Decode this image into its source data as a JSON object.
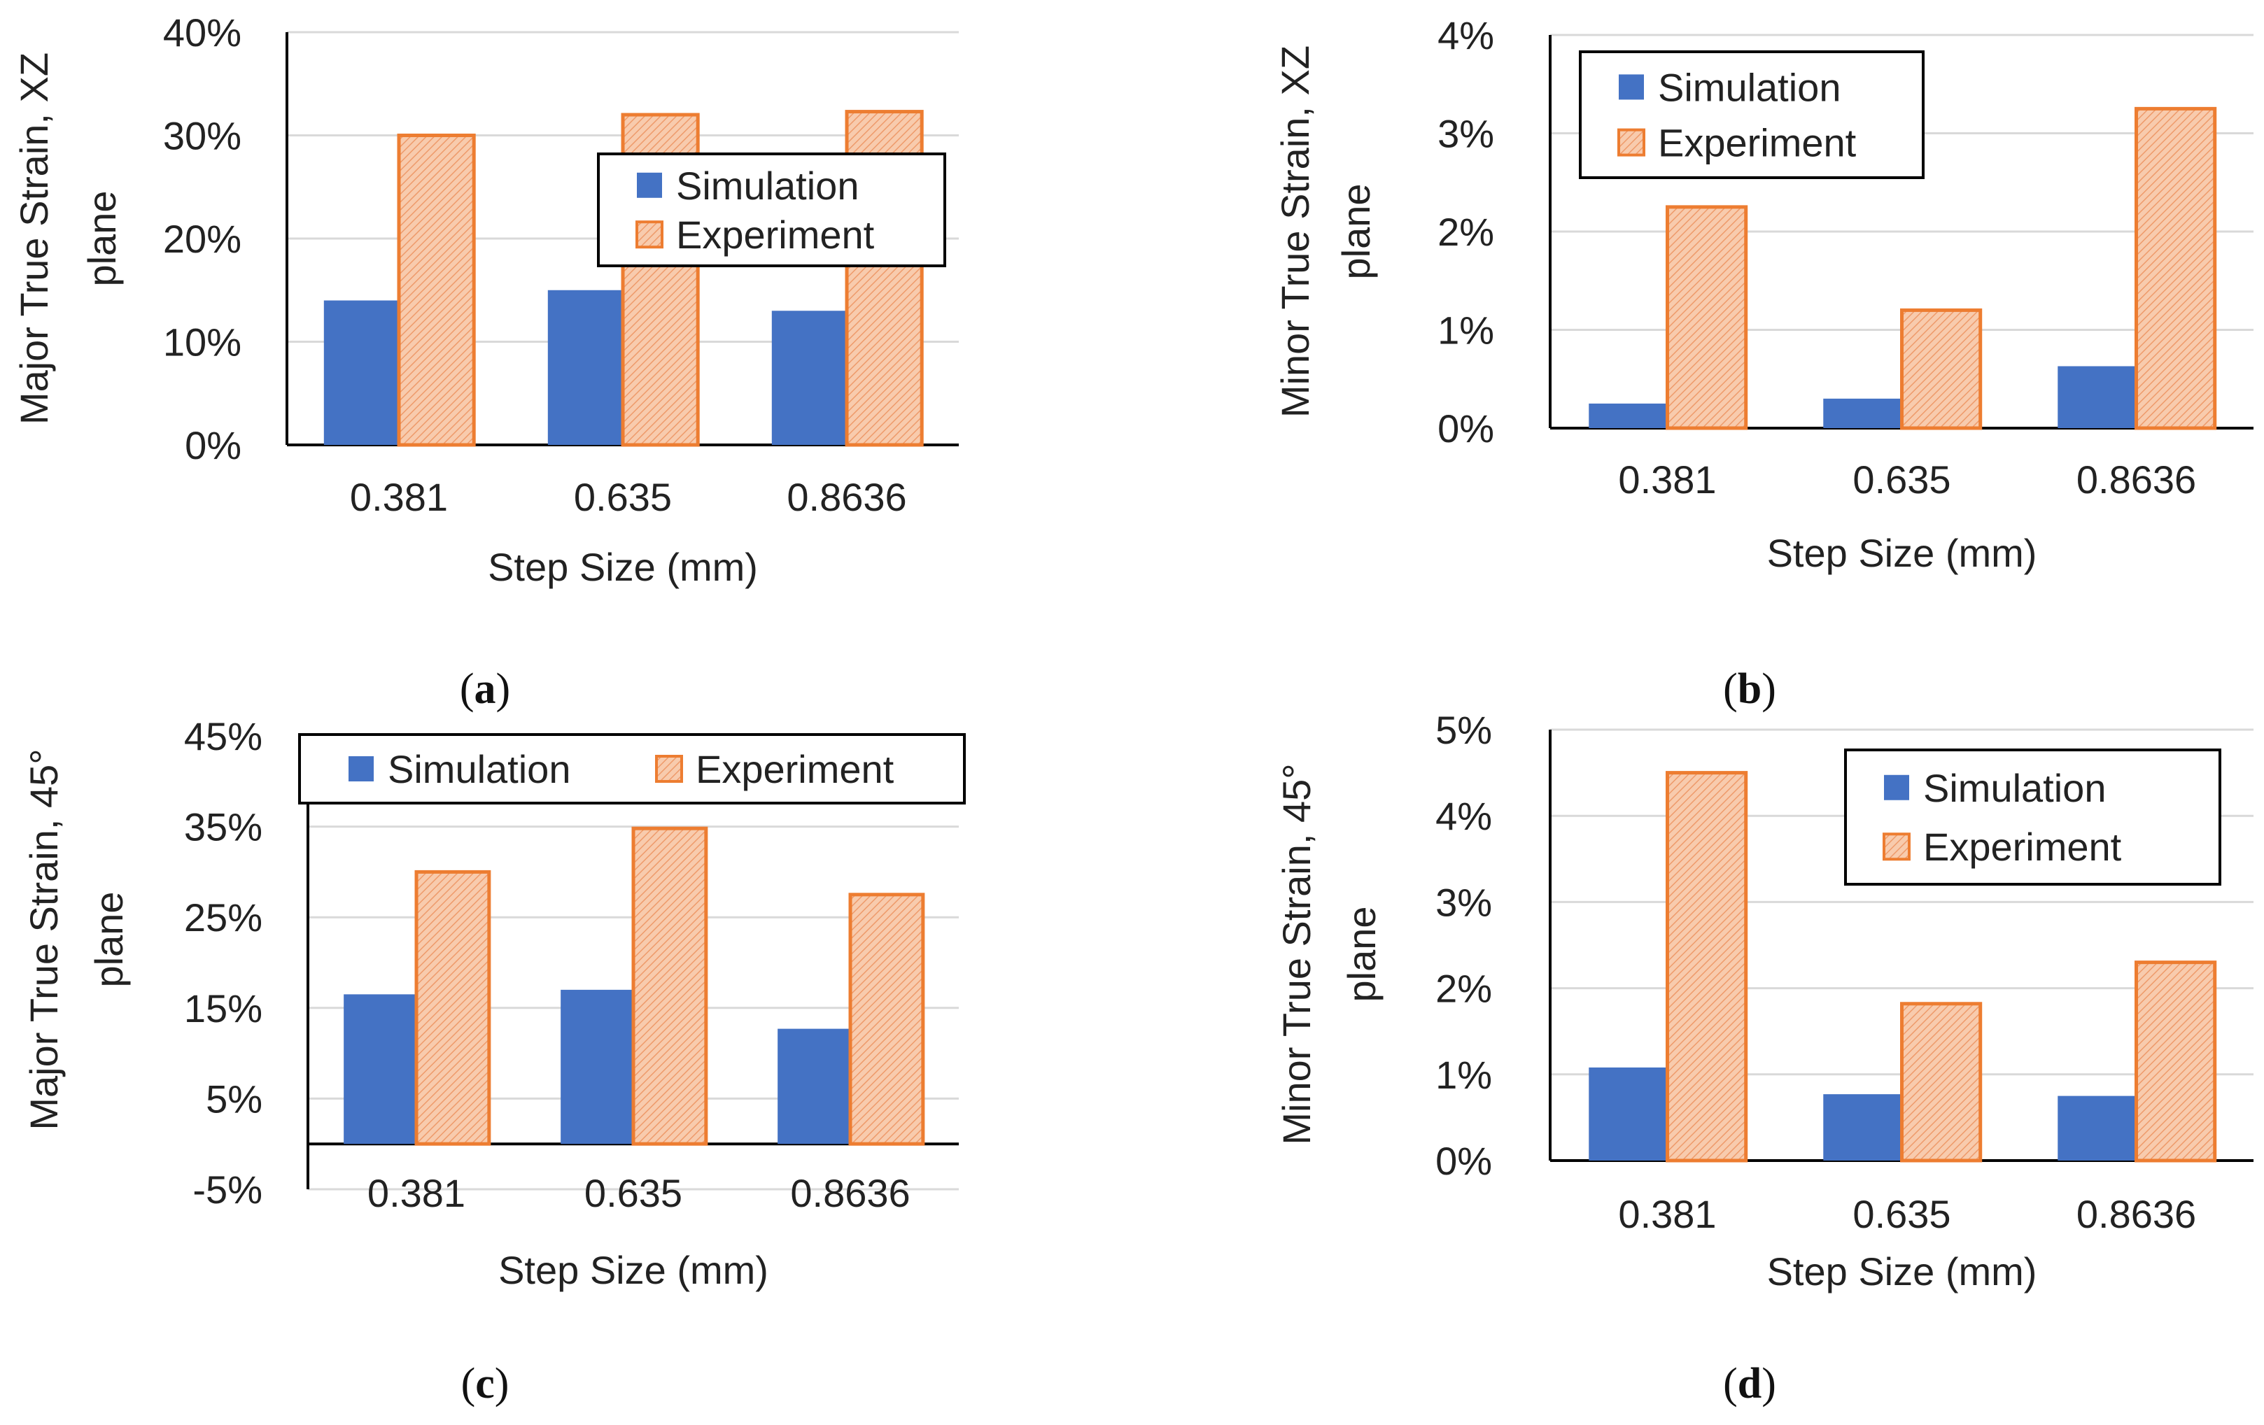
{
  "colors": {
    "simulation": "#4472C4",
    "experiment_fill": "#F8CBAD",
    "experiment_edge": "#ED7D31",
    "grid": "#D9D9D9",
    "axis": "#000000"
  },
  "chart_data": [
    {
      "id": "a",
      "type": "bar",
      "panel_label": "a",
      "categories": [
        "0.381",
        "0.635",
        "0.8636"
      ],
      "series": [
        {
          "name": "Simulation",
          "values": [
            14,
            15,
            13
          ]
        },
        {
          "name": "Experiment",
          "values": [
            30,
            32,
            32.3
          ]
        }
      ],
      "xlabel": "Step Size (mm)",
      "ylabel_lines": [
        "Major True Strain, XZ",
        "plane"
      ],
      "ylim": [
        0,
        40
      ],
      "ticks": [
        0,
        10,
        20,
        30,
        40
      ],
      "tick_labels": [
        "0%",
        "10%",
        "20%",
        "30%",
        "40%"
      ],
      "legend": [
        "Simulation",
        "Experiment"
      ],
      "legend_position": "top-right"
    },
    {
      "id": "b",
      "type": "bar",
      "panel_label": "b",
      "categories": [
        "0.381",
        "0.635",
        "0.8636"
      ],
      "series": [
        {
          "name": "Simulation",
          "values": [
            0.25,
            0.3,
            0.63
          ]
        },
        {
          "name": "Experiment",
          "values": [
            2.25,
            1.2,
            3.25
          ]
        }
      ],
      "xlabel": "Step Size (mm)",
      "ylabel_lines": [
        "Minor True Strain, XZ",
        "plane"
      ],
      "ylim": [
        0,
        4
      ],
      "ticks": [
        0,
        1,
        2,
        3,
        4
      ],
      "tick_labels": [
        "0%",
        "1%",
        "2%",
        "3%",
        "4%"
      ],
      "legend": [
        "Simulation",
        "Experiment"
      ],
      "legend_position": "top-left"
    },
    {
      "id": "c",
      "type": "bar",
      "panel_label": "c",
      "categories": [
        "0.381",
        "0.635",
        "0.8636"
      ],
      "series": [
        {
          "name": "Simulation",
          "values": [
            16.5,
            17,
            12.7
          ]
        },
        {
          "name": "Experiment",
          "values": [
            30,
            34.8,
            27.5
          ]
        }
      ],
      "xlabel": "Step Size (mm)",
      "ylabel_lines": [
        "Major True Strain, 45°",
        "plane"
      ],
      "ylim": [
        -5,
        45
      ],
      "ticks": [
        -5,
        5,
        15,
        25,
        35,
        45
      ],
      "tick_labels": [
        "-5%",
        "5%",
        "15%",
        "25%",
        "35%",
        "45%"
      ],
      "legend": [
        "Simulation",
        "Experiment"
      ],
      "legend_position": "top"
    },
    {
      "id": "d",
      "type": "bar",
      "panel_label": "d",
      "categories": [
        "0.381",
        "0.635",
        "0.8636"
      ],
      "series": [
        {
          "name": "Simulation",
          "values": [
            1.08,
            0.77,
            0.75
          ]
        },
        {
          "name": "Experiment",
          "values": [
            4.5,
            1.82,
            2.3
          ]
        }
      ],
      "xlabel": "Step Size (mm)",
      "ylabel_lines": [
        "Minor True Strain, 45°",
        "plane"
      ],
      "ylim": [
        0,
        5
      ],
      "ticks": [
        0,
        1,
        2,
        3,
        4,
        5
      ],
      "tick_labels": [
        "0%",
        "1%",
        "2%",
        "3%",
        "4%",
        "5%"
      ],
      "legend": [
        "Simulation",
        "Experiment"
      ],
      "legend_position": "top-right"
    }
  ]
}
